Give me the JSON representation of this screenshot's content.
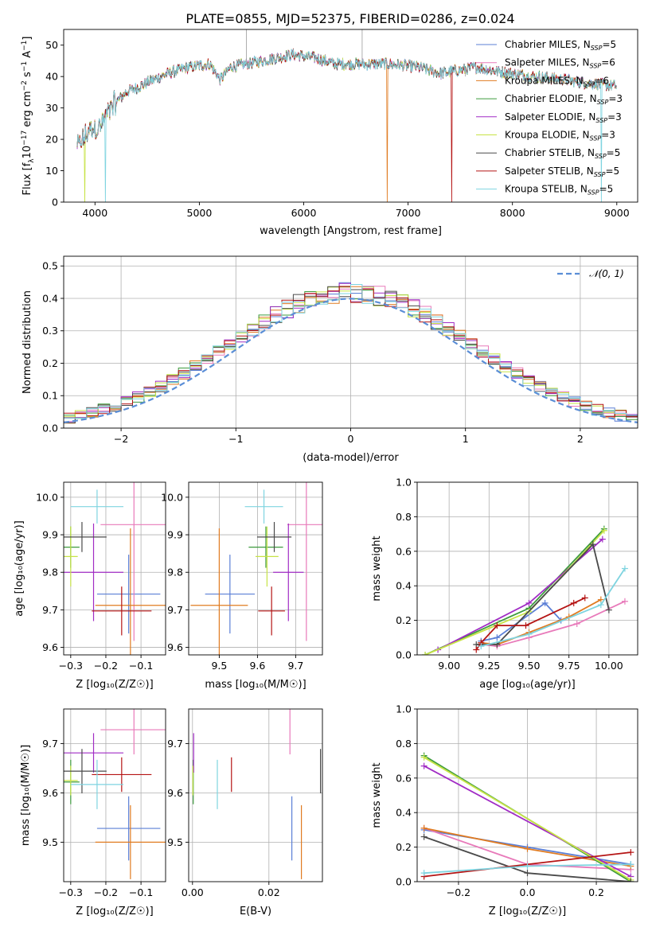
{
  "colors": {
    "Chabrier MILES": "#5b7fd6",
    "Salpeter MILES": "#e87aba",
    "Kroupa MILES": "#e07b21",
    "Chabrier ELODIE": "#3e9b3e",
    "Salpeter ELODIE": "#a12cc5",
    "Kroupa ELODIE": "#c7e346",
    "Chabrier STELIB": "#4a4a4a",
    "Salpeter STELIB": "#b51414",
    "Kroupa STELIB": "#7fd4e0",
    "normal_fit": "#5b8ed6",
    "grid": "#b0b0b0"
  },
  "series_order": [
    "Chabrier MILES",
    "Salpeter MILES",
    "Kroupa MILES",
    "Chabrier ELODIE",
    "Salpeter ELODIE",
    "Kroupa ELODIE",
    "Chabrier STELIB",
    "Salpeter STELIB",
    "Kroupa STELIB"
  ],
  "legend_labels": [
    "Chabrier MILES, N",
    "Salpeter MILES, N",
    "Kroupa MILES, N",
    "Chabrier ELODIE, N",
    "Salpeter ELODIE, N",
    "Kroupa ELODIE, N",
    "Chabrier STELIB, N",
    "Salpeter STELIB, N",
    "Kroupa STELIB, N"
  ],
  "legend_sub": "SSP",
  "legend_nssp": [
    "=5",
    "=6",
    "=6",
    "=3",
    "=3",
    "=3",
    "=5",
    "=5",
    "=5"
  ],
  "chart_data": [
    {
      "id": "spectrum",
      "type": "line",
      "title": "PLATE=0855, MJD=52375, FIBERID=0286, z=0.024",
      "xlabel": "wavelength [Angstrom, rest frame]",
      "ylabel_pre": "Flux [f",
      "ylabel_sub": "λ",
      "ylabel_post": "10",
      "ylabel_sup": "−17",
      "ylabel_rest": " erg cm",
      "ylabel_sup2": "−2",
      "ylabel_rest2": " s",
      "ylabel_sup3": "−1",
      "ylabel_rest3": " A",
      "ylabel_sup4": "−1",
      "ylabel_end": "]",
      "xlim": [
        3700,
        9200
      ],
      "ylim": [
        0,
        55
      ],
      "xticks": [
        4000,
        5000,
        6000,
        7000,
        8000,
        9000
      ],
      "yticks": [
        0,
        10,
        20,
        30,
        40,
        50
      ],
      "legend_position": "top-right",
      "continuum_knots": [
        [
          3850,
          18
        ],
        [
          3950,
          23
        ],
        [
          4050,
          24
        ],
        [
          4150,
          30
        ],
        [
          4300,
          35
        ],
        [
          4500,
          38
        ],
        [
          4700,
          41
        ],
        [
          4900,
          43
        ],
        [
          5100,
          44
        ],
        [
          5200,
          39
        ],
        [
          5300,
          43
        ],
        [
          5600,
          45
        ],
        [
          5900,
          47
        ],
        [
          6100,
          46
        ],
        [
          6300,
          44
        ],
        [
          6562,
          44
        ],
        [
          6800,
          44
        ],
        [
          7100,
          43
        ],
        [
          7300,
          41
        ],
        [
          7500,
          42
        ],
        [
          7650,
          43
        ],
        [
          7800,
          42
        ],
        [
          8000,
          41
        ],
        [
          8200,
          40
        ],
        [
          8500,
          39
        ],
        [
          8700,
          38
        ],
        [
          9000,
          37
        ]
      ],
      "deep_dips": [
        [
          3900,
          "Kroupa ELODIE"
        ],
        [
          4100,
          "Kroupa STELIB"
        ],
        [
          6800,
          "Kroupa MILES"
        ],
        [
          7420,
          "Salpeter STELIB"
        ],
        [
          8850,
          "Kroupa STELIB"
        ]
      ],
      "spikes": [
        [
          5450,
          59
        ],
        [
          6560,
          55
        ],
        [
          7550,
          40
        ]
      ]
    },
    {
      "id": "residuals",
      "type": "histogram",
      "xlabel": "(data-model)/error",
      "ylabel": "Normed distribution",
      "xlim": [
        -2.5,
        2.5
      ],
      "ylim": [
        0,
        0.53
      ],
      "xticks": [
        -2,
        -1,
        0,
        1,
        2
      ],
      "yticks": [
        0.0,
        0.1,
        0.2,
        0.3,
        0.4,
        0.5
      ],
      "legend": "𝒩(0, 1)",
      "legend_position": "top-right",
      "bin_width": 0.1
    },
    {
      "id": "age_vs_Z",
      "type": "errorbar",
      "xlabel": "Z [log₁₀(Z/Z☉)]",
      "ylabel": "age  [log₁₀(age/yr)]",
      "xlim": [
        -0.32,
        -0.03
      ],
      "ylim": [
        9.58,
        10.04
      ],
      "xticks": [
        -0.3,
        -0.2,
        -0.1
      ],
      "yticks": [
        9.6,
        9.7,
        9.8,
        9.9,
        10.0
      ],
      "points": [
        {
          "series": "Chabrier MILES",
          "x": -0.135,
          "xerr": 0.09,
          "y": 9.742,
          "yerr": 0.105
        },
        {
          "series": "Salpeter MILES",
          "x": -0.12,
          "xerr": 0.095,
          "y": 9.927,
          "yerr": 0.31
        },
        {
          "series": "Kroupa MILES",
          "x": -0.13,
          "xerr": 0.1,
          "y": 9.712,
          "yerr": 0.205
        },
        {
          "series": "Chabrier ELODIE",
          "x": -0.3,
          "xerr": 0.025,
          "y": 9.867,
          "yerr": 0.055
        },
        {
          "series": "Salpeter ELODIE",
          "x": -0.235,
          "xerr": 0.085,
          "y": 9.8,
          "yerr": 0.13
        },
        {
          "series": "Kroupa ELODIE",
          "x": -0.3,
          "xerr": 0.02,
          "y": 9.842,
          "yerr": 0.08
        },
        {
          "series": "Chabrier STELIB",
          "x": -0.268,
          "xerr": 0.07,
          "y": 9.894,
          "yerr": 0.04
        },
        {
          "series": "Salpeter STELIB",
          "x": -0.155,
          "xerr": 0.085,
          "y": 9.697,
          "yerr": 0.065
        },
        {
          "series": "Kroupa STELIB",
          "x": -0.225,
          "xerr": 0.075,
          "y": 9.975,
          "yerr": 0.045
        }
      ]
    },
    {
      "id": "age_vs_mass",
      "type": "errorbar",
      "xlabel": "mass [log₁₀(M/M☉)]",
      "ylabel": "",
      "xlim": [
        9.42,
        9.77
      ],
      "ylim": [
        9.58,
        10.04
      ],
      "xticks": [
        9.5,
        9.6,
        9.7
      ],
      "yticks": [
        9.6,
        9.7,
        9.8,
        9.9,
        10.0
      ],
      "points": [
        {
          "series": "Chabrier MILES",
          "x": 9.528,
          "xerr": 0.065,
          "y": 9.742,
          "yerr": 0.105
        },
        {
          "series": "Salpeter MILES",
          "x": 9.728,
          "xerr": 0.05,
          "y": 9.927,
          "yerr": 0.31
        },
        {
          "series": "Kroupa MILES",
          "x": 9.5,
          "xerr": 0.075,
          "y": 9.712,
          "yerr": 0.205
        },
        {
          "series": "Chabrier ELODIE",
          "x": 9.622,
          "xerr": 0.045,
          "y": 9.867,
          "yerr": 0.055
        },
        {
          "series": "Salpeter ELODIE",
          "x": 9.681,
          "xerr": 0.04,
          "y": 9.8,
          "yerr": 0.13
        },
        {
          "series": "Kroupa ELODIE",
          "x": 9.625,
          "xerr": 0.03,
          "y": 9.842,
          "yerr": 0.08
        },
        {
          "series": "Chabrier STELIB",
          "x": 9.644,
          "xerr": 0.045,
          "y": 9.894,
          "yerr": 0.04
        },
        {
          "series": "Salpeter STELIB",
          "x": 9.637,
          "xerr": 0.035,
          "y": 9.697,
          "yerr": 0.065
        },
        {
          "series": "Kroupa STELIB",
          "x": 9.617,
          "xerr": 0.05,
          "y": 9.975,
          "yerr": 0.045
        }
      ]
    },
    {
      "id": "mass_weight_vs_age",
      "type": "line",
      "xlabel": "age  [log₁₀(age/yr)]",
      "ylabel": "mass weight",
      "xlim": [
        8.8,
        10.18
      ],
      "ylim": [
        0,
        1.0
      ],
      "xticks": [
        9.0,
        9.25,
        9.5,
        9.75,
        10.0
      ],
      "yticks": [
        0.0,
        0.2,
        0.4,
        0.6,
        0.8,
        1.0
      ],
      "series": [
        {
          "name": "Chabrier MILES",
          "x": [
            9.2,
            9.3,
            9.6,
            9.7
          ],
          "y": [
            0.08,
            0.1,
            0.3,
            0.2
          ]
        },
        {
          "name": "Salpeter MILES",
          "x": [
            9.2,
            9.3,
            9.5,
            9.8,
            10.1
          ],
          "y": [
            0.06,
            0.05,
            0.1,
            0.18,
            0.31
          ]
        },
        {
          "name": "Kroupa MILES",
          "x": [
            9.2,
            9.3,
            9.5,
            9.75,
            9.95
          ],
          "y": [
            0.07,
            0.06,
            0.13,
            0.22,
            0.32
          ]
        },
        {
          "name": "Chabrier ELODIE",
          "x": [
            8.85,
            9.5,
            9.97
          ],
          "y": [
            0.0,
            0.27,
            0.73
          ]
        },
        {
          "name": "Salpeter ELODIE",
          "x": [
            8.93,
            9.5,
            9.96
          ],
          "y": [
            0.03,
            0.3,
            0.67
          ]
        },
        {
          "name": "Kroupa ELODIE",
          "x": [
            8.85,
            9.5,
            9.97
          ],
          "y": [
            0.0,
            0.25,
            0.72
          ]
        },
        {
          "name": "Chabrier STELIB",
          "x": [
            9.17,
            9.3,
            9.9,
            10.0
          ],
          "y": [
            0.06,
            0.06,
            0.64,
            0.26
          ]
        },
        {
          "name": "Salpeter STELIB",
          "x": [
            9.17,
            9.2,
            9.3,
            9.48,
            9.78,
            9.85
          ],
          "y": [
            0.03,
            0.07,
            0.17,
            0.17,
            0.3,
            0.33
          ]
        },
        {
          "name": "Kroupa STELIB",
          "x": [
            9.2,
            9.5,
            9.95,
            10.1
          ],
          "y": [
            0.05,
            0.12,
            0.29,
            0.5
          ]
        }
      ]
    },
    {
      "id": "mass_vs_Z",
      "type": "errorbar",
      "xlabel": "Z [log₁₀(Z/Z☉)]",
      "ylabel": "mass [log₁₀(M/M☉)]",
      "xlim": [
        -0.32,
        -0.03
      ],
      "ylim": [
        9.42,
        9.77
      ],
      "xticks": [
        -0.3,
        -0.2,
        -0.1
      ],
      "yticks": [
        9.5,
        9.6,
        9.7
      ],
      "points": [
        {
          "series": "Chabrier MILES",
          "x": -0.135,
          "xerr": 0.09,
          "y": 9.528,
          "yerr": 0.065
        },
        {
          "series": "Salpeter MILES",
          "x": -0.12,
          "xerr": 0.095,
          "y": 9.728,
          "yerr": 0.05
        },
        {
          "series": "Kroupa MILES",
          "x": -0.13,
          "xerr": 0.1,
          "y": 9.5,
          "yerr": 0.075
        },
        {
          "series": "Chabrier ELODIE",
          "x": -0.3,
          "xerr": 0.025,
          "y": 9.622,
          "yerr": 0.045
        },
        {
          "series": "Salpeter ELODIE",
          "x": -0.235,
          "xerr": 0.085,
          "y": 9.681,
          "yerr": 0.04
        },
        {
          "series": "Kroupa ELODIE",
          "x": -0.3,
          "xerr": 0.02,
          "y": 9.625,
          "yerr": 0.03
        },
        {
          "series": "Chabrier STELIB",
          "x": -0.268,
          "xerr": 0.07,
          "y": 9.644,
          "yerr": 0.045
        },
        {
          "series": "Salpeter STELIB",
          "x": -0.155,
          "xerr": 0.085,
          "y": 9.637,
          "yerr": 0.035
        },
        {
          "series": "Kroupa STELIB",
          "x": -0.225,
          "xerr": 0.075,
          "y": 9.617,
          "yerr": 0.05
        }
      ]
    },
    {
      "id": "mass_vs_EBV",
      "type": "errorbar",
      "xlabel": "E(B-V)",
      "ylabel": "",
      "xlim": [
        -0.001,
        0.034
      ],
      "ylim": [
        9.42,
        9.77
      ],
      "xticks": [
        0.0,
        0.02
      ],
      "xticklabels": [
        "0.00",
        "0.02"
      ],
      "yticks": [
        9.5,
        9.6,
        9.7
      ],
      "points": [
        {
          "series": "Chabrier MILES",
          "x": 0.026,
          "xerr": 0,
          "y": 9.528,
          "yerr": 0.065
        },
        {
          "series": "Salpeter MILES",
          "x": 0.0255,
          "xerr": 0,
          "y": 9.728,
          "yerr": 0.05
        },
        {
          "series": "Kroupa MILES",
          "x": 0.0285,
          "xerr": 0,
          "y": 9.5,
          "yerr": 0.075
        },
        {
          "series": "Chabrier ELODIE",
          "x": 0.0002,
          "xerr": 0,
          "y": 9.622,
          "yerr": 0.045
        },
        {
          "series": "Salpeter ELODIE",
          "x": 0.0003,
          "xerr": 0,
          "y": 9.681,
          "yerr": 0.04
        },
        {
          "series": "Kroupa ELODIE",
          "x": 0.0001,
          "xerr": 0,
          "y": 9.625,
          "yerr": 0.03
        },
        {
          "series": "Chabrier STELIB",
          "x": 0.0335,
          "xerr": 0,
          "y": 9.644,
          "yerr": 0.045
        },
        {
          "series": "Salpeter STELIB",
          "x": 0.0102,
          "xerr": 0,
          "y": 9.637,
          "yerr": 0.035
        },
        {
          "series": "Kroupa STELIB",
          "x": 0.0065,
          "xerr": 0,
          "y": 9.617,
          "yerr": 0.05
        }
      ]
    },
    {
      "id": "mass_weight_vs_Z",
      "type": "line",
      "xlabel": "Z [log₁₀(Z/Z☉)]",
      "ylabel": "mass weight",
      "xlim": [
        -0.32,
        0.32
      ],
      "ylim": [
        0,
        1.0
      ],
      "xticks": [
        -0.2,
        0.0,
        0.2
      ],
      "yticks": [
        0.0,
        0.2,
        0.4,
        0.6,
        0.8,
        1.0
      ],
      "series": [
        {
          "name": "Chabrier MILES",
          "x": [
            -0.3,
            0.0,
            0.3
          ],
          "y": [
            0.3,
            0.2,
            0.1
          ]
        },
        {
          "name": "Salpeter MILES",
          "x": [
            -0.3,
            0.0,
            0.3
          ],
          "y": [
            0.31,
            0.1,
            0.07
          ]
        },
        {
          "name": "Kroupa MILES",
          "x": [
            -0.3,
            0.0,
            0.3
          ],
          "y": [
            0.31,
            0.19,
            0.09
          ]
        },
        {
          "name": "Chabrier ELODIE",
          "x": [
            -0.3,
            0.3
          ],
          "y": [
            0.73,
            0.0
          ]
        },
        {
          "name": "Salpeter ELODIE",
          "x": [
            -0.3,
            0.3
          ],
          "y": [
            0.67,
            0.03
          ]
        },
        {
          "name": "Kroupa ELODIE",
          "x": [
            -0.3,
            0.3
          ],
          "y": [
            0.72,
            0.01
          ]
        },
        {
          "name": "Chabrier STELIB",
          "x": [
            -0.3,
            0.0,
            0.3
          ],
          "y": [
            0.26,
            0.05,
            0.0
          ]
        },
        {
          "name": "Salpeter STELIB",
          "x": [
            -0.3,
            0.3
          ],
          "y": [
            0.03,
            0.17
          ]
        },
        {
          "name": "Kroupa STELIB",
          "x": [
            -0.3,
            0.0,
            0.3
          ],
          "y": [
            0.05,
            0.09,
            0.1
          ]
        }
      ],
      "vertical_stacks_x": -0.3
    }
  ]
}
